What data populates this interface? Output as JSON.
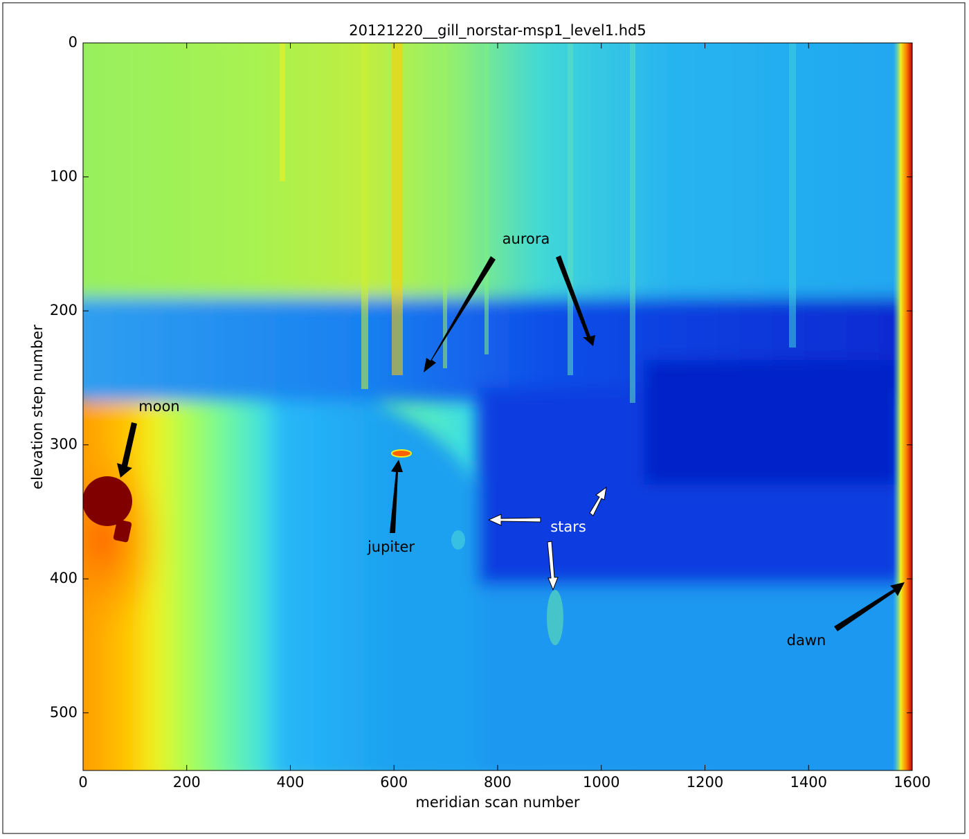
{
  "chart_data": {
    "type": "image",
    "title": "20121220__gill_norstar-msp1_level1.hd5",
    "xlabel": "meridian scan number",
    "ylabel": "elevation step number",
    "xlim": [
      0,
      1600
    ],
    "ylim": [
      543,
      0
    ],
    "xticks": [
      0,
      200,
      400,
      600,
      800,
      1000,
      1200,
      1400,
      1600
    ],
    "yticks": [
      0,
      100,
      200,
      300,
      400,
      500
    ],
    "colormap": "jet",
    "annotations": [
      {
        "text": "moon",
        "color": "#000000"
      },
      {
        "text": "aurora",
        "color": "#000000"
      },
      {
        "text": "jupiter",
        "color": "#000000"
      },
      {
        "text": "stars",
        "color": "#ffffff"
      },
      {
        "text": "dawn",
        "color": "#000000"
      }
    ]
  }
}
